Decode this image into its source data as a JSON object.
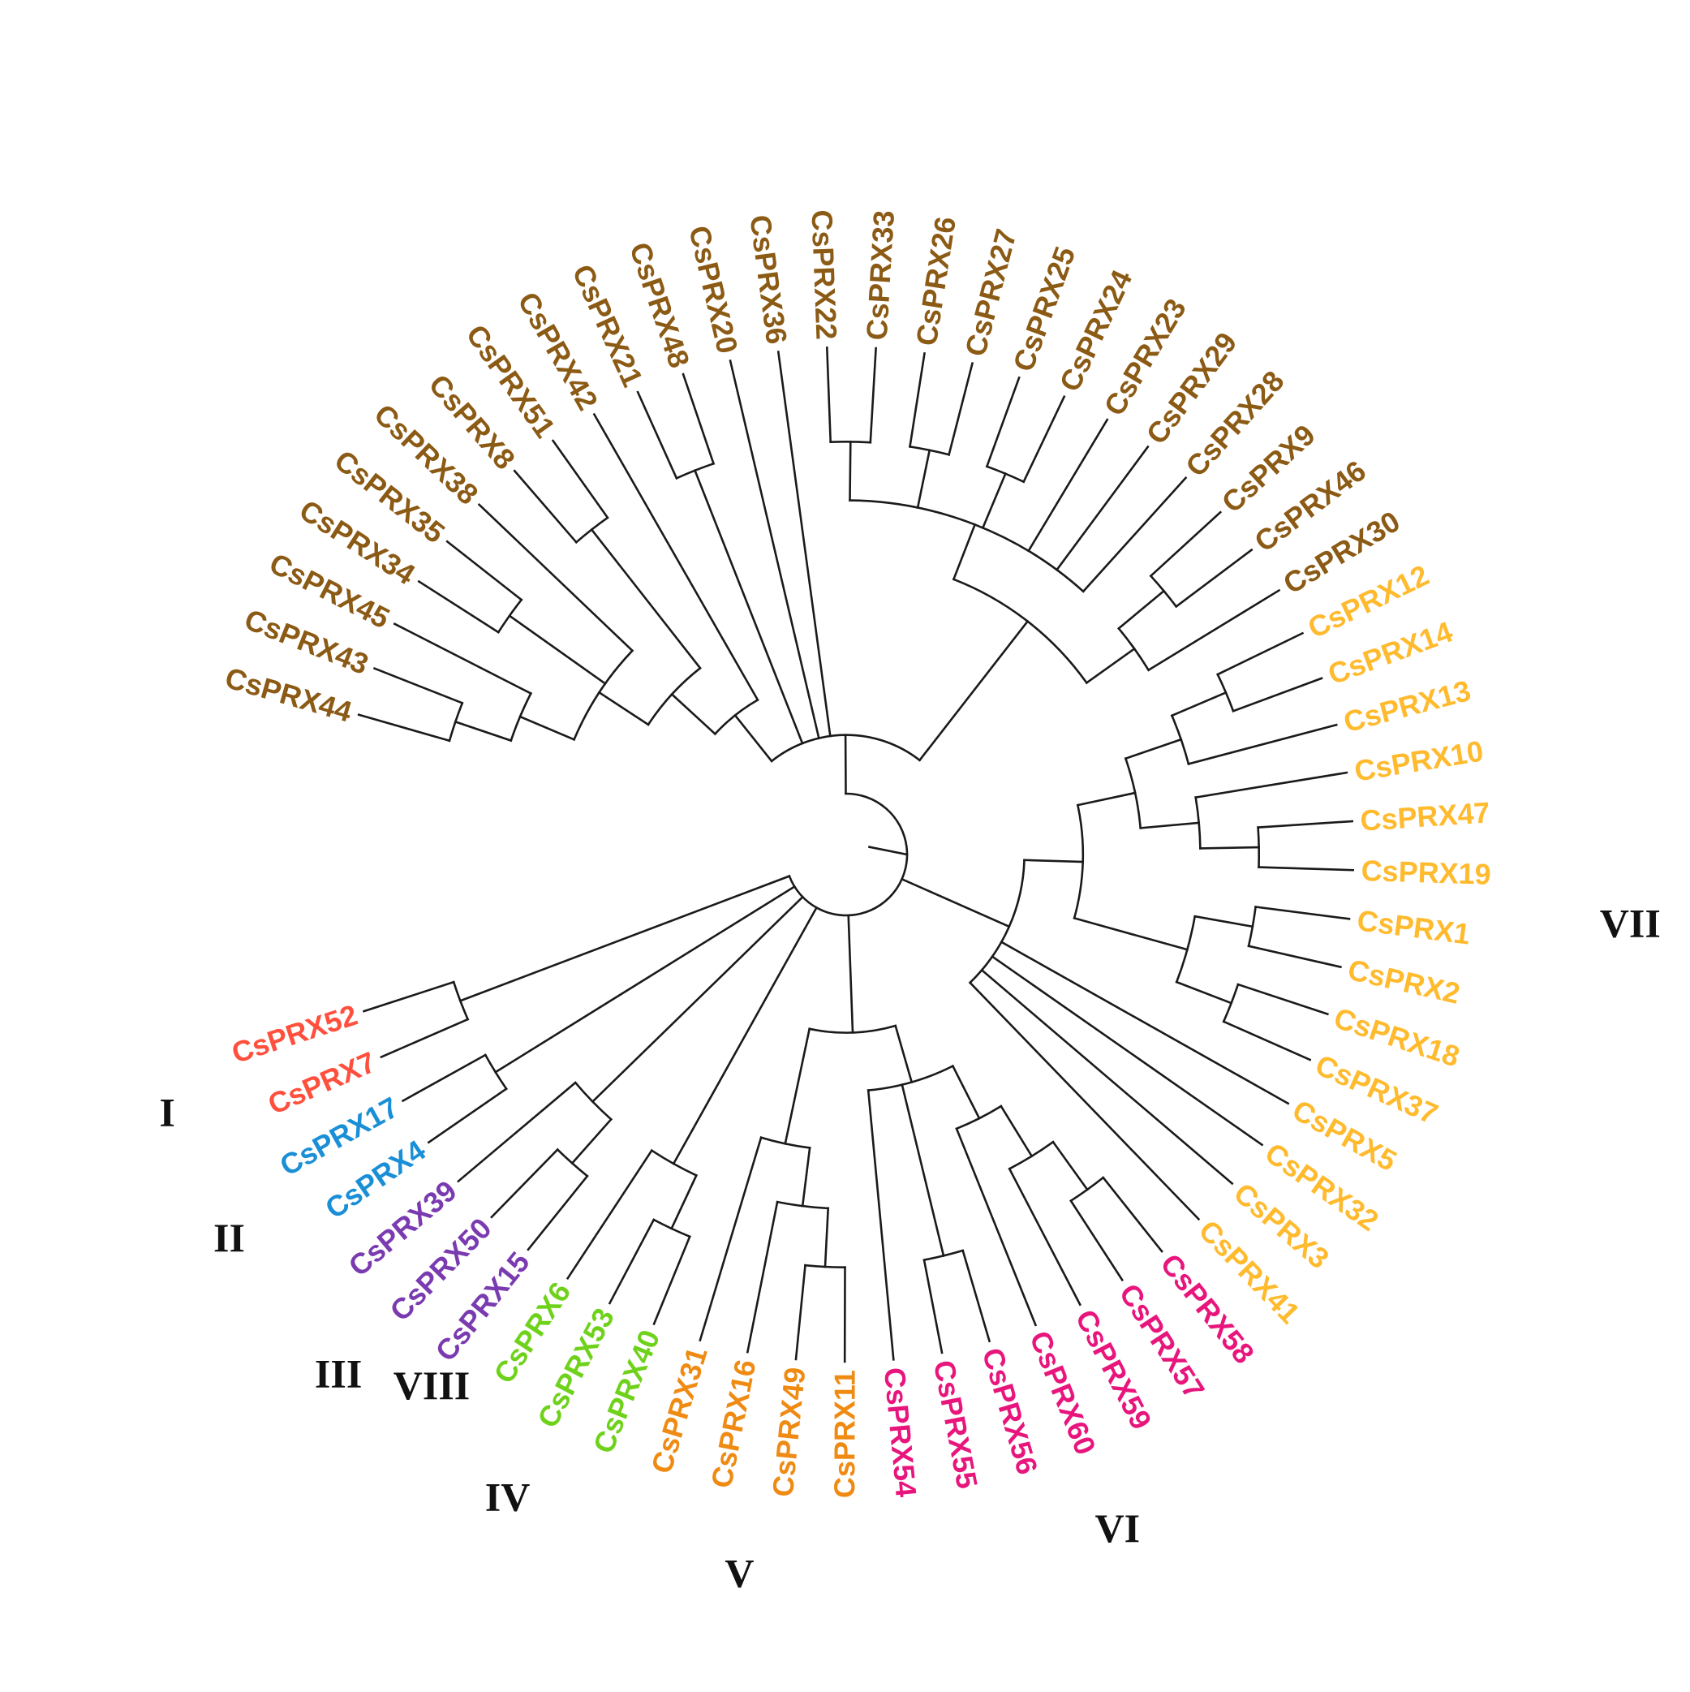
{
  "clades": [
    {
      "id": "I",
      "label": "I",
      "color": "#ff4f3d"
    },
    {
      "id": "II",
      "label": "II",
      "color": "#1a8fd6"
    },
    {
      "id": "III",
      "label": "III",
      "color": "#7a3ab0"
    },
    {
      "id": "IV",
      "label": "IV",
      "color": "#6fd21a"
    },
    {
      "id": "V",
      "label": "V",
      "color": "#ef8a12"
    },
    {
      "id": "VI",
      "label": "VI",
      "color": "#e8157c"
    },
    {
      "id": "VII",
      "label": "VII",
      "color": "#ffba2e"
    },
    {
      "id": "VIII",
      "label": "VIII",
      "color": "#8b5a14"
    }
  ],
  "tree": {
    "children": [
      {
        "children": [
          {
            "children": [
              {
                "children": [
                  {
                    "children": [
                      {
                        "children": [
                          {
                            "children": [
                              {
                                "leaf": "CsPRX44",
                                "clade": "VIII"
                              },
                              {
                                "leaf": "CsPRX43",
                                "clade": "VIII"
                              }
                            ]
                          },
                          {
                            "leaf": "CsPRX45",
                            "clade": "VIII"
                          }
                        ]
                      },
                      {
                        "children": [
                          {
                            "leaf": "CsPRX34",
                            "clade": "VIII"
                          },
                          {
                            "leaf": "CsPRX35",
                            "clade": "VIII"
                          }
                        ]
                      },
                      {
                        "leaf": "CsPRX38",
                        "clade": "VIII"
                      }
                    ]
                  },
                  {
                    "children": [
                      {
                        "leaf": "CsPRX8",
                        "clade": "VIII"
                      },
                      {
                        "leaf": "CsPRX51",
                        "clade": "VIII"
                      }
                    ]
                  }
                ]
              },
              {
                "leaf": "CsPRX42",
                "clade": "VIII"
              }
            ]
          },
          {
            "children": [
              {
                "leaf": "CsPRX21",
                "clade": "VIII"
              },
              {
                "leaf": "CsPRX48",
                "clade": "VIII"
              }
            ]
          },
          {
            "leaf": "CsPRX20",
            "clade": "VIII"
          },
          {
            "leaf": "CsPRX36",
            "clade": "VIII"
          },
          {
            "children": [
              {
                "children": [
                  {
                    "children": [
                      {
                        "leaf": "CsPRX22",
                        "clade": "VIII"
                      },
                      {
                        "leaf": "CsPRX33",
                        "clade": "VIII"
                      }
                    ]
                  },
                  {
                    "children": [
                      {
                        "leaf": "CsPRX26",
                        "clade": "VIII"
                      },
                      {
                        "leaf": "CsPRX27",
                        "clade": "VIII"
                      }
                    ]
                  },
                  {
                    "children": [
                      {
                        "leaf": "CsPRX25",
                        "clade": "VIII"
                      },
                      {
                        "leaf": "CsPRX24",
                        "clade": "VIII"
                      }
                    ]
                  },
                  {
                    "leaf": "CsPRX23",
                    "clade": "VIII"
                  },
                  {
                    "leaf": "CsPRX29",
                    "clade": "VIII"
                  },
                  {
                    "leaf": "CsPRX28",
                    "clade": "VIII"
                  }
                ]
              },
              {
                "children": [
                  {
                    "children": [
                      {
                        "leaf": "CsPRX9",
                        "clade": "VIII"
                      },
                      {
                        "leaf": "CsPRX46",
                        "clade": "VIII"
                      }
                    ]
                  },
                  {
                    "leaf": "CsPRX30",
                    "clade": "VIII"
                  }
                ]
              }
            ]
          }
        ]
      },
      {
        "children": [
          {
            "children": [
              {
                "children": [
                  {
                    "children": [
                      {
                        "children": [
                          {
                            "leaf": "CsPRX12",
                            "clade": "VII"
                          },
                          {
                            "leaf": "CsPRX14",
                            "clade": "VII"
                          }
                        ]
                      },
                      {
                        "leaf": "CsPRX13",
                        "clade": "VII"
                      }
                    ]
                  },
                  {
                    "children": [
                      {
                        "leaf": "CsPRX10",
                        "clade": "VII"
                      },
                      {
                        "children": [
                          {
                            "leaf": "CsPRX47",
                            "clade": "VII"
                          },
                          {
                            "leaf": "CsPRX19",
                            "clade": "VII"
                          }
                        ]
                      }
                    ]
                  }
                ]
              },
              {
                "children": [
                  {
                    "children": [
                      {
                        "leaf": "CsPRX1",
                        "clade": "VII"
                      },
                      {
                        "leaf": "CsPRX2",
                        "clade": "VII"
                      }
                    ]
                  },
                  {
                    "children": [
                      {
                        "leaf": "CsPRX18",
                        "clade": "VII"
                      },
                      {
                        "leaf": "CsPRX37",
                        "clade": "VII"
                      }
                    ]
                  }
                ]
              }
            ]
          },
          {
            "leaf": "CsPRX5",
            "clade": "VII"
          },
          {
            "leaf": "CsPRX32",
            "clade": "VII"
          },
          {
            "leaf": "CsPRX3",
            "clade": "VII"
          },
          {
            "leaf": "CsPRX41",
            "clade": "VII"
          }
        ]
      },
      {
        "children": [
          {
            "children": [
              {
                "children": [
                  {
                    "children": [
                      {
                        "children": [
                          {
                            "leaf": "CsPRX58",
                            "clade": "VI"
                          },
                          {
                            "leaf": "CsPRX57",
                            "clade": "VI"
                          }
                        ]
                      },
                      {
                        "leaf": "CsPRX59",
                        "clade": "VI"
                      }
                    ]
                  },
                  {
                    "leaf": "CsPRX60",
                    "clade": "VI"
                  }
                ]
              },
              {
                "children": [
                  {
                    "leaf": "CsPRX56",
                    "clade": "VI"
                  },
                  {
                    "leaf": "CsPRX55",
                    "clade": "VI"
                  }
                ]
              },
              {
                "leaf": "CsPRX54",
                "clade": "VI"
              }
            ]
          },
          {
            "children": [
              {
                "children": [
                  {
                    "children": [
                      {
                        "leaf": "CsPRX11",
                        "clade": "V"
                      },
                      {
                        "leaf": "CsPRX49",
                        "clade": "V"
                      }
                    ]
                  },
                  {
                    "leaf": "CsPRX16",
                    "clade": "V"
                  }
                ]
              },
              {
                "leaf": "CsPRX31",
                "clade": "V"
              }
            ]
          }
        ]
      },
      {
        "children": [
          {
            "children": [
              {
                "leaf": "CsPRX40",
                "clade": "IV"
              },
              {
                "leaf": "CsPRX53",
                "clade": "IV"
              }
            ]
          },
          {
            "leaf": "CsPRX6",
            "clade": "IV"
          }
        ]
      },
      {
        "children": [
          {
            "children": [
              {
                "leaf": "CsPRX15",
                "clade": "III"
              },
              {
                "leaf": "CsPRX50",
                "clade": "III"
              }
            ]
          },
          {
            "leaf": "CsPRX39",
            "clade": "III"
          }
        ]
      },
      {
        "children": [
          {
            "leaf": "CsPRX4",
            "clade": "II"
          },
          {
            "leaf": "CsPRX17",
            "clade": "II"
          }
        ]
      },
      {
        "children": [
          {
            "leaf": "CsPRX7",
            "clade": "I"
          },
          {
            "leaf": "CsPRX52",
            "clade": "I"
          }
        ]
      }
    ]
  }
}
